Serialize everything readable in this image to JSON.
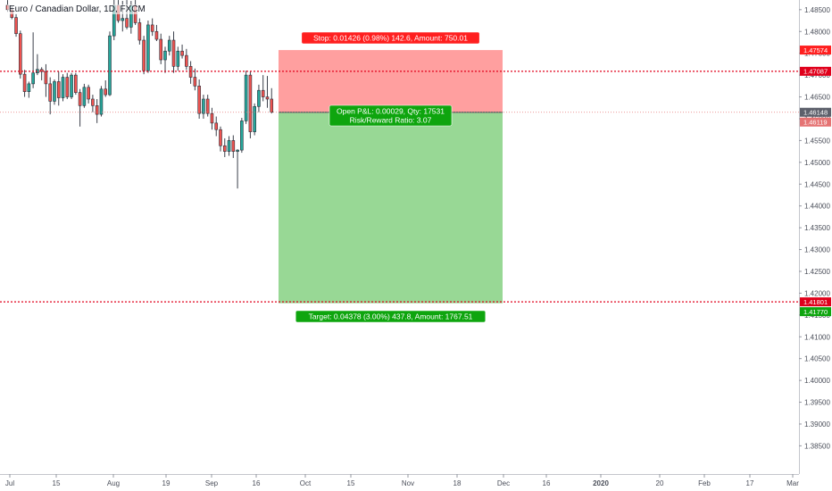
{
  "chart_title": "Euro / Canadian Dollar, 1D, FXCM",
  "colors": {
    "up": "#26a69a",
    "down": "#ef5350",
    "stop_zone": "#ff9f9f",
    "target_zone": "#98d895",
    "stop_label": "#ff1f1f",
    "target_label": "#0ea50e",
    "level_line": "#e0001b"
  },
  "chart_data": {
    "type": "candlestick",
    "symbol": "Euro / Canadian Dollar",
    "interval": "1D",
    "source": "FXCM",
    "ylim": [
      1.3815,
      1.4865
    ],
    "y_ticks": [
      "1.48500",
      "1.48000",
      "1.47500",
      "1.47000",
      "1.46500",
      "1.46000",
      "1.45500",
      "1.45000",
      "1.44500",
      "1.44000",
      "1.43500",
      "1.43000",
      "1.42500",
      "1.42000",
      "1.41500",
      "1.41000",
      "1.40500",
      "1.40000",
      "1.39500",
      "1.39000",
      "1.38500"
    ],
    "x_ticks": [
      "Jul",
      "15",
      "Aug",
      "19",
      "Sep",
      "16",
      "Oct",
      "15",
      "Nov",
      "18",
      "Dec",
      "16",
      "2020",
      "20",
      "Feb",
      "17",
      "Mar"
    ],
    "candles": [
      [
        1.486,
        1.4872,
        1.4845,
        1.485
      ],
      [
        1.485,
        1.4858,
        1.4828,
        1.4832
      ],
      [
        1.4832,
        1.484,
        1.4788,
        1.4795
      ],
      [
        1.4795,
        1.4802,
        1.4692,
        1.4702
      ],
      [
        1.4702,
        1.4712,
        1.465,
        1.4662
      ],
      [
        1.4662,
        1.4685,
        1.4648,
        1.468
      ],
      [
        1.468,
        1.4798,
        1.467,
        1.4705
      ],
      [
        1.4705,
        1.4748,
        1.47,
        1.4713
      ],
      [
        1.4713,
        1.4718,
        1.4688,
        1.4708
      ],
      [
        1.4708,
        1.4725,
        1.465,
        1.468
      ],
      [
        1.468,
        1.4695,
        1.461,
        1.464
      ],
      [
        1.464,
        1.469,
        1.4632,
        1.4685
      ],
      [
        1.4685,
        1.4708,
        1.463,
        1.4648
      ],
      [
        1.4648,
        1.4702,
        1.464,
        1.4695
      ],
      [
        1.4695,
        1.4705,
        1.4645,
        1.465
      ],
      [
        1.465,
        1.4705,
        1.4645,
        1.47
      ],
      [
        1.47,
        1.4705,
        1.4655,
        1.466
      ],
      [
        1.466,
        1.4668,
        1.4582,
        1.463
      ],
      [
        1.463,
        1.468,
        1.4625,
        1.4672
      ],
      [
        1.4672,
        1.4678,
        1.4635,
        1.4645
      ],
      [
        1.4645,
        1.4655,
        1.4615,
        1.463
      ],
      [
        1.463,
        1.4645,
        1.459,
        1.461
      ],
      [
        1.461,
        1.4675,
        1.4605,
        1.4668
      ],
      [
        1.4668,
        1.4688,
        1.465,
        1.4655
      ],
      [
        1.4655,
        1.48,
        1.4652,
        1.479
      ],
      [
        1.479,
        1.488,
        1.478,
        1.486
      ],
      [
        1.486,
        1.4872,
        1.482,
        1.4825
      ],
      [
        1.4825,
        1.487,
        1.48,
        1.483
      ],
      [
        1.483,
        1.4872,
        1.4805,
        1.481
      ],
      [
        1.481,
        1.487,
        1.4795,
        1.486
      ],
      [
        1.486,
        1.4872,
        1.4815,
        1.482
      ],
      [
        1.482,
        1.483,
        1.477,
        1.478
      ],
      [
        1.478,
        1.479,
        1.4702,
        1.471
      ],
      [
        1.471,
        1.4825,
        1.4705,
        1.4815
      ],
      [
        1.4815,
        1.483,
        1.479,
        1.48
      ],
      [
        1.48,
        1.4815,
        1.4778,
        1.4782
      ],
      [
        1.4782,
        1.4795,
        1.4725,
        1.4735
      ],
      [
        1.4735,
        1.4765,
        1.4705,
        1.4755
      ],
      [
        1.4755,
        1.479,
        1.4745,
        1.478
      ],
      [
        1.478,
        1.48,
        1.4705,
        1.472
      ],
      [
        1.472,
        1.4765,
        1.471,
        1.4755
      ],
      [
        1.4755,
        1.477,
        1.4738,
        1.4745
      ],
      [
        1.4745,
        1.476,
        1.4712,
        1.472
      ],
      [
        1.472,
        1.4732,
        1.468,
        1.4695
      ],
      [
        1.4695,
        1.4715,
        1.4665,
        1.4675
      ],
      [
        1.4675,
        1.469,
        1.46,
        1.4612
      ],
      [
        1.4612,
        1.4655,
        1.46,
        1.4645
      ],
      [
        1.4645,
        1.4655,
        1.4605,
        1.4612
      ],
      [
        1.4612,
        1.4625,
        1.4575,
        1.459
      ],
      [
        1.459,
        1.4605,
        1.456,
        1.4575
      ],
      [
        1.4575,
        1.4582,
        1.4525,
        1.4538
      ],
      [
        1.4538,
        1.4555,
        1.4512,
        1.4525
      ],
      [
        1.4525,
        1.456,
        1.4515,
        1.455
      ],
      [
        1.455,
        1.4562,
        1.451,
        1.4525
      ],
      [
        1.4525,
        1.453,
        1.444,
        1.4528
      ],
      [
        1.4528,
        1.4602,
        1.4522,
        1.4595
      ],
      [
        1.4595,
        1.471,
        1.4588,
        1.47
      ],
      [
        1.47,
        1.4708,
        1.4555,
        1.457
      ],
      [
        1.457,
        1.4635,
        1.4562,
        1.4628
      ],
      [
        1.4628,
        1.4678,
        1.4615,
        1.4665
      ],
      [
        1.4665,
        1.47,
        1.464,
        1.465
      ],
      [
        1.465,
        1.4698,
        1.4625,
        1.4645
      ],
      [
        1.4645,
        1.467,
        1.4612,
        1.4615
      ]
    ],
    "position": {
      "entry": 1.46148,
      "stop": 1.47574,
      "target": 1.4177
    }
  },
  "price_lines": [
    {
      "price": 1.47087,
      "label": "1.47087"
    },
    {
      "price": 1.41801,
      "label": "1.41801"
    }
  ],
  "price_tags": [
    {
      "price": 1.47574,
      "label": "1.47574",
      "color": "#ff1f1f"
    },
    {
      "price": 1.47087,
      "label": "1.47087",
      "color": "#e0001b"
    },
    {
      "price": 1.46148,
      "label": "1.46148",
      "color": "#5d606b"
    },
    {
      "price": 1.46119,
      "label": "1.46119",
      "color": "#e57373"
    },
    {
      "price": 1.41801,
      "label": "1.41801",
      "color": "#e0001b"
    },
    {
      "price": 1.4177,
      "label": "1.41770",
      "color": "#0ea50e"
    }
  ],
  "labels": {
    "stop": "Stop: 0.01426 (0.98%) 142.6, Amount: 750.01",
    "pnl_line1": "Open P&L: 0.00029, Qty: 17531",
    "pnl_line2": "Risk/Reward Ratio: 3.07",
    "target": "Target: 0.04378 (3.00%) 437.8, Amount: 1767.51"
  }
}
